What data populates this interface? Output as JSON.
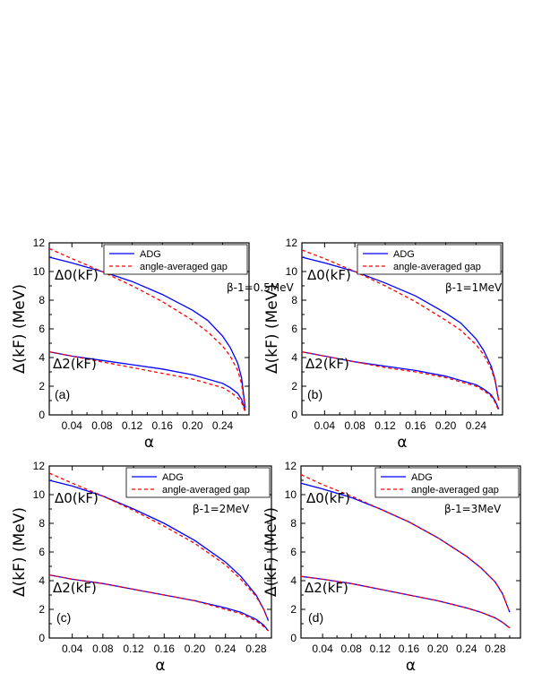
{
  "chart_data": [
    {
      "type": "line",
      "panel_label": "(a)",
      "xlabel": "α",
      "ylabel": "Δ(kF) (MeV)",
      "xlim": [
        0.01,
        0.275
      ],
      "ylim": [
        0,
        12
      ],
      "xticks": [
        "0.04",
        "0.08",
        "0.12",
        "0.16",
        "0.20",
        "0.24"
      ],
      "xtick_values": [
        0.04,
        0.08,
        0.12,
        0.16,
        0.2,
        0.24
      ],
      "yticks": [
        "0",
        "2",
        "4",
        "6",
        "8",
        "10",
        "12"
      ],
      "ytick_values": [
        0,
        2,
        4,
        6,
        8,
        10,
        12
      ],
      "legend": {
        "position": "top-right",
        "entries": [
          "ADG",
          "angle-averaged gap"
        ]
      },
      "annotation": "β-1=0.5MeV",
      "curve_labels": [
        "Δ0(kF)",
        "Δ2(kF)"
      ],
      "series": [
        {
          "name": "ADG",
          "color": "#0000ff",
          "dash": "solid",
          "curves": [
            {
              "x": [
                0.01,
                0.04,
                0.08,
                0.12,
                0.16,
                0.2,
                0.22,
                0.24,
                0.25,
                0.26,
                0.265,
                0.27
              ],
              "y": [
                11.0,
                10.6,
                10.0,
                9.3,
                8.4,
                7.3,
                6.6,
                5.5,
                4.7,
                3.6,
                2.6,
                0.5
              ]
            },
            {
              "x": [
                0.01,
                0.04,
                0.08,
                0.12,
                0.16,
                0.2,
                0.24,
                0.25,
                0.26,
                0.265,
                0.27
              ],
              "y": [
                4.4,
                4.1,
                3.8,
                3.5,
                3.2,
                2.8,
                2.2,
                1.9,
                1.5,
                1.1,
                0.3
              ]
            }
          ]
        },
        {
          "name": "angle-averaged gap",
          "color": "#ff0000",
          "dash": "dashed",
          "curves": [
            {
              "x": [
                0.01,
                0.04,
                0.08,
                0.12,
                0.16,
                0.2,
                0.22,
                0.24,
                0.25,
                0.26,
                0.265,
                0.27
              ],
              "y": [
                11.6,
                10.9,
                10.0,
                9.0,
                7.9,
                6.6,
                5.8,
                4.8,
                4.1,
                3.1,
                2.2,
                0.4
              ]
            },
            {
              "x": [
                0.01,
                0.04,
                0.08,
                0.12,
                0.16,
                0.2,
                0.24,
                0.25,
                0.26,
                0.265,
                0.27
              ],
              "y": [
                4.4,
                4.1,
                3.7,
                3.3,
                2.9,
                2.5,
                1.9,
                1.6,
                1.2,
                0.9,
                0.2
              ]
            }
          ]
        }
      ]
    },
    {
      "type": "line",
      "panel_label": "(b)",
      "xlabel": "α",
      "ylabel": "Δ(kF) (MeV)",
      "xlim": [
        0.01,
        0.275
      ],
      "ylim": [
        0,
        12
      ],
      "xticks": [
        "0.04",
        "0.08",
        "0.12",
        "0.16",
        "0.20",
        "0.24"
      ],
      "xtick_values": [
        0.04,
        0.08,
        0.12,
        0.16,
        0.2,
        0.24
      ],
      "yticks": [
        "0",
        "2",
        "4",
        "6",
        "8",
        "10",
        "12"
      ],
      "ytick_values": [
        0,
        2,
        4,
        6,
        8,
        10,
        12
      ],
      "legend": {
        "position": "top-right",
        "entries": [
          "ADG",
          "angle-averaged gap"
        ]
      },
      "annotation": "β-1=1MeV",
      "curve_labels": [
        "Δ0(kF)",
        "Δ2(kF)"
      ],
      "series": [
        {
          "name": "ADG",
          "color": "#0000ff",
          "dash": "solid",
          "curves": [
            {
              "x": [
                0.01,
                0.04,
                0.08,
                0.12,
                0.16,
                0.2,
                0.22,
                0.24,
                0.25,
                0.26,
                0.265,
                0.27
              ],
              "y": [
                11.0,
                10.6,
                10.0,
                9.2,
                8.3,
                7.1,
                6.4,
                5.3,
                4.5,
                3.4,
                2.5,
                1.0
              ]
            },
            {
              "x": [
                0.01,
                0.04,
                0.08,
                0.12,
                0.16,
                0.2,
                0.24,
                0.25,
                0.26,
                0.265,
                0.27
              ],
              "y": [
                4.4,
                4.1,
                3.7,
                3.4,
                3.1,
                2.7,
                2.1,
                1.8,
                1.4,
                1.0,
                0.4
              ]
            }
          ]
        },
        {
          "name": "angle-averaged gap",
          "color": "#ff0000",
          "dash": "dashed",
          "curves": [
            {
              "x": [
                0.01,
                0.04,
                0.08,
                0.12,
                0.16,
                0.2,
                0.22,
                0.24,
                0.25,
                0.26,
                0.265,
                0.27
              ],
              "y": [
                11.5,
                10.9,
                10.0,
                9.0,
                7.9,
                6.6,
                5.9,
                4.9,
                4.2,
                3.2,
                2.4,
                1.0
              ]
            },
            {
              "x": [
                0.01,
                0.04,
                0.08,
                0.12,
                0.16,
                0.2,
                0.24,
                0.25,
                0.26,
                0.265,
                0.27
              ],
              "y": [
                4.4,
                4.1,
                3.7,
                3.3,
                3.0,
                2.6,
                2.0,
                1.7,
                1.3,
                0.9,
                0.3
              ]
            }
          ]
        }
      ]
    },
    {
      "type": "line",
      "panel_label": "(c)",
      "xlabel": "α",
      "ylabel": "Δ(kF) (MeV)",
      "xlim": [
        0.01,
        0.3
      ],
      "ylim": [
        0,
        12
      ],
      "xticks": [
        "0.04",
        "0.08",
        "0.12",
        "0.16",
        "0.20",
        "0.24",
        "0.28"
      ],
      "xtick_values": [
        0.04,
        0.08,
        0.12,
        0.16,
        0.2,
        0.24,
        0.28
      ],
      "yticks": [
        "0",
        "2",
        "4",
        "6",
        "8",
        "10",
        "12"
      ],
      "ytick_values": [
        0,
        2,
        4,
        6,
        8,
        10,
        12
      ],
      "legend": {
        "position": "top-right",
        "entries": [
          "ADG",
          "angle-averaged gap"
        ]
      },
      "annotation": "β-1=2MeV",
      "curve_labels": [
        "Δ0(kF)",
        "Δ2(kF)"
      ],
      "series": [
        {
          "name": "ADG",
          "color": "#0000ff",
          "dash": "solid",
          "curves": [
            {
              "x": [
                0.01,
                0.04,
                0.08,
                0.12,
                0.16,
                0.2,
                0.24,
                0.26,
                0.28,
                0.29,
                0.296
              ],
              "y": [
                11.0,
                10.6,
                9.9,
                9.0,
                8.0,
                6.8,
                5.3,
                4.3,
                3.0,
                2.0,
                1.2
              ]
            },
            {
              "x": [
                0.01,
                0.04,
                0.08,
                0.12,
                0.16,
                0.2,
                0.24,
                0.26,
                0.28,
                0.29,
                0.296
              ],
              "y": [
                4.4,
                4.1,
                3.8,
                3.4,
                3.0,
                2.6,
                2.1,
                1.8,
                1.3,
                0.9,
                0.5
              ]
            }
          ]
        },
        {
          "name": "angle-averaged gap",
          "color": "#ff0000",
          "dash": "dashed",
          "curves": [
            {
              "x": [
                0.01,
                0.04,
                0.08,
                0.12,
                0.16,
                0.2,
                0.24,
                0.26,
                0.28,
                0.29,
                0.296
              ],
              "y": [
                11.5,
                10.8,
                9.9,
                8.9,
                7.8,
                6.6,
                5.1,
                4.1,
                2.9,
                2.0,
                1.2
              ]
            },
            {
              "x": [
                0.01,
                0.04,
                0.08,
                0.12,
                0.16,
                0.2,
                0.24,
                0.26,
                0.28,
                0.29,
                0.296
              ],
              "y": [
                4.4,
                4.1,
                3.8,
                3.4,
                3.0,
                2.6,
                2.0,
                1.7,
                1.2,
                0.8,
                0.5
              ]
            }
          ]
        }
      ]
    },
    {
      "type": "line",
      "panel_label": "(d)",
      "xlabel": "α",
      "ylabel": "Δ(kF) (MeV)",
      "xlim": [
        0.01,
        0.315
      ],
      "ylim": [
        0,
        12
      ],
      "xticks": [
        "0.04",
        "0.08",
        "0.12",
        "0.16",
        "0.20",
        "0.24",
        "0.28"
      ],
      "xtick_values": [
        0.04,
        0.08,
        0.12,
        0.16,
        0.2,
        0.24,
        0.28
      ],
      "yticks": [
        "0",
        "2",
        "4",
        "6",
        "8",
        "10",
        "12"
      ],
      "ytick_values": [
        0,
        2,
        4,
        6,
        8,
        10,
        12
      ],
      "legend": {
        "position": "top-right",
        "entries": [
          "ADG",
          "angle-averaged gap"
        ]
      },
      "annotation": "β-1=3MeV",
      "curve_labels": [
        "Δ0(kF)",
        "Δ2(kF)"
      ],
      "series": [
        {
          "name": "ADG",
          "color": "#0000ff",
          "dash": "solid",
          "curves": [
            {
              "x": [
                0.01,
                0.04,
                0.08,
                0.12,
                0.16,
                0.2,
                0.24,
                0.26,
                0.28,
                0.29,
                0.3
              ],
              "y": [
                10.8,
                10.4,
                9.8,
                9.0,
                8.1,
                7.0,
                5.7,
                4.9,
                3.9,
                3.1,
                1.8
              ]
            },
            {
              "x": [
                0.01,
                0.04,
                0.08,
                0.12,
                0.16,
                0.2,
                0.24,
                0.26,
                0.28,
                0.29,
                0.3
              ],
              "y": [
                4.3,
                4.1,
                3.8,
                3.4,
                3.0,
                2.6,
                2.1,
                1.8,
                1.4,
                1.1,
                0.7
              ]
            }
          ]
        },
        {
          "name": "angle-averaged gap",
          "color": "#ff0000",
          "dash": "dashed",
          "curves": [
            {
              "x": [
                0.01,
                0.04,
                0.08,
                0.12,
                0.16,
                0.2,
                0.24,
                0.26,
                0.28,
                0.29,
                0.3
              ],
              "y": [
                11.4,
                10.7,
                9.9,
                9.0,
                8.1,
                7.0,
                5.7,
                4.9,
                3.9,
                3.1,
                1.8
              ]
            },
            {
              "x": [
                0.01,
                0.04,
                0.08,
                0.12,
                0.16,
                0.2,
                0.24,
                0.26,
                0.28,
                0.29,
                0.3
              ],
              "y": [
                4.3,
                4.1,
                3.8,
                3.4,
                3.0,
                2.6,
                2.1,
                1.8,
                1.4,
                1.1,
                0.7
              ]
            }
          ]
        }
      ]
    }
  ]
}
